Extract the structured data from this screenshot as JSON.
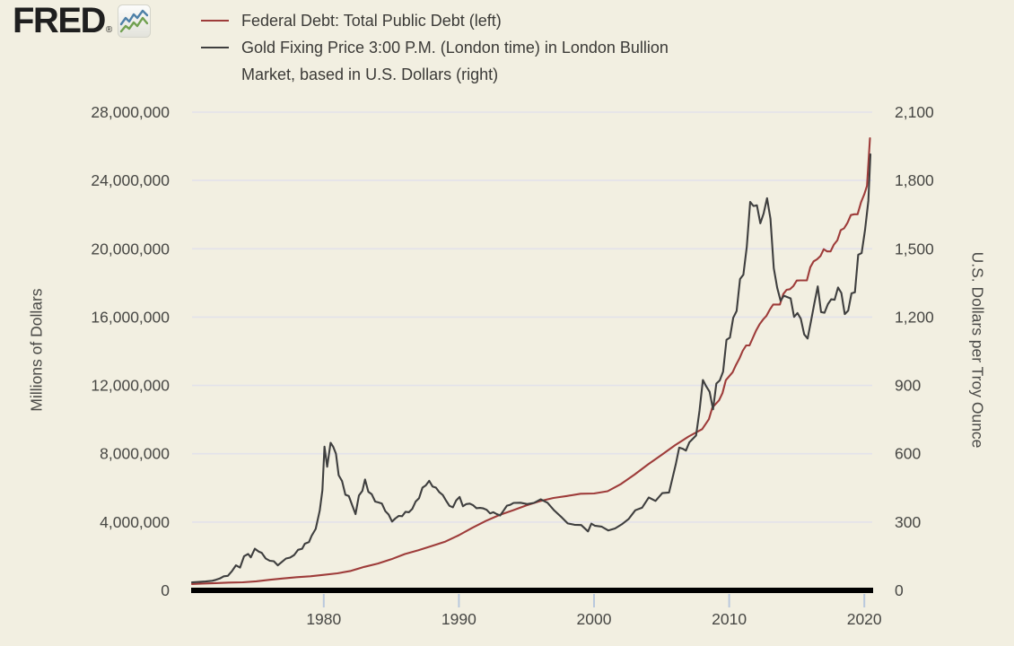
{
  "header": {
    "logo_text": "FRED",
    "logo_reg": "®"
  },
  "legend": {
    "items": [
      {
        "series": "federal-debt",
        "label": "Federal Debt: Total Public Debt (left)",
        "lines": [
          "Federal Debt: Total Public Debt (left)"
        ]
      },
      {
        "series": "gold-price",
        "label": "Gold Fixing Price 3:00 P.M. (London time) in London Bullion Market, based in U.S. Dollars (right)",
        "lines": [
          "Gold Fixing Price 3:00 P.M. (London time) in London Bullion",
          "Market, based in U.S. Dollars (right)"
        ]
      }
    ]
  },
  "colors": {
    "background": "#f2efe1",
    "debt_line": "#9e3c3a",
    "gold_line": "#3f3f3f",
    "grid": "#e3e2ea",
    "axis_tick": "#b9c8dd",
    "axis_text": "#474744",
    "axis_bar": "#000000",
    "fred_icon_blue": "#4f81a8",
    "fred_icon_green": "#71a150"
  },
  "chart_data": {
    "type": "line",
    "title": "",
    "legend_position": "top-left",
    "grid": "horizontal",
    "axes": {
      "x": {
        "ticks": [
          "1980",
          "1990",
          "2000",
          "2010",
          "2020"
        ],
        "tick_values": [
          1980,
          1990,
          2000,
          2010,
          2020
        ],
        "range": [
          1970.25,
          2020.45
        ]
      },
      "left": {
        "title": "Millions of Dollars",
        "ticks": [
          "28,000,000",
          "24,000,000",
          "20,000,000",
          "16,000,000",
          "12,000,000",
          "8,000,000",
          "4,000,000",
          "0"
        ],
        "tick_values": [
          28000000,
          24000000,
          20000000,
          16000000,
          12000000,
          8000000,
          4000000,
          0
        ],
        "range": [
          0,
          28000000
        ]
      },
      "right": {
        "title": "U.S. Dollars per Troy Ounce",
        "ticks": [
          "2,100",
          "1,800",
          "1,500",
          "1,200",
          "900",
          "600",
          "300",
          "0"
        ],
        "tick_values": [
          2100,
          1800,
          1500,
          1200,
          900,
          600,
          300,
          0
        ],
        "range": [
          0,
          2100
        ]
      }
    },
    "series": [
      {
        "name": "Federal Debt: Total Public Debt (left)",
        "axis": "left",
        "color": "#9e3c3a",
        "units": "Millions of Dollars",
        "points": [
          [
            1970.25,
            372000
          ],
          [
            1971,
            398000
          ],
          [
            1972,
            427000
          ],
          [
            1973,
            458000
          ],
          [
            1974,
            475000
          ],
          [
            1975,
            533000
          ],
          [
            1976,
            620000
          ],
          [
            1977,
            699000
          ],
          [
            1978,
            772000
          ],
          [
            1979,
            827000
          ],
          [
            1980,
            908000
          ],
          [
            1981,
            998000
          ],
          [
            1982,
            1142000
          ],
          [
            1983,
            1377000
          ],
          [
            1984,
            1572000
          ],
          [
            1985,
            1823000
          ],
          [
            1986,
            2125000
          ],
          [
            1987,
            2350000
          ],
          [
            1988,
            2602000
          ],
          [
            1989,
            2857000
          ],
          [
            1990,
            3233000
          ],
          [
            1991,
            3665000
          ],
          [
            1992,
            4065000
          ],
          [
            1993,
            4411000
          ],
          [
            1994,
            4693000
          ],
          [
            1995,
            4974000
          ],
          [
            1996,
            5225000
          ],
          [
            1997,
            5413000
          ],
          [
            1998,
            5526000
          ],
          [
            1999,
            5656000
          ],
          [
            2000,
            5674000
          ],
          [
            2001,
            5807000
          ],
          [
            2002,
            6228000
          ],
          [
            2003,
            6783000
          ],
          [
            2004,
            7379000
          ],
          [
            2005,
            7933000
          ],
          [
            2006,
            8507000
          ],
          [
            2007,
            9008000
          ],
          [
            2008,
            9438000
          ],
          [
            2008.5,
            10025000
          ],
          [
            2008.75,
            10700000
          ],
          [
            2009.25,
            11127000
          ],
          [
            2009.5,
            11545000
          ],
          [
            2009.75,
            12311000
          ],
          [
            2010.25,
            12773000
          ],
          [
            2010.5,
            13202000
          ],
          [
            2010.75,
            13562000
          ],
          [
            2011,
            14025000
          ],
          [
            2011.25,
            14344000
          ],
          [
            2011.5,
            14343000
          ],
          [
            2011.75,
            14790000
          ],
          [
            2012,
            15223000
          ],
          [
            2012.25,
            15583000
          ],
          [
            2012.5,
            15856000
          ],
          [
            2012.75,
            16066000
          ],
          [
            2013,
            16433000
          ],
          [
            2013.25,
            16738000
          ],
          [
            2013.5,
            16738000
          ],
          [
            2013.75,
            16738000
          ],
          [
            2014,
            17352000
          ],
          [
            2014.25,
            17601000
          ],
          [
            2014.5,
            17633000
          ],
          [
            2014.75,
            17824000
          ],
          [
            2015,
            18141000
          ],
          [
            2015.25,
            18152000
          ],
          [
            2015.5,
            18152000
          ],
          [
            2015.75,
            18151000
          ],
          [
            2016,
            18923000
          ],
          [
            2016.25,
            19265000
          ],
          [
            2016.5,
            19382000
          ],
          [
            2016.75,
            19573000
          ],
          [
            2017,
            19977000
          ],
          [
            2017.25,
            19846000
          ],
          [
            2017.5,
            19845000
          ],
          [
            2017.75,
            20245000
          ],
          [
            2018,
            20493000
          ],
          [
            2018.25,
            21090000
          ],
          [
            2018.5,
            21195000
          ],
          [
            2018.75,
            21516000
          ],
          [
            2019,
            21974000
          ],
          [
            2019.25,
            22023000
          ],
          [
            2019.5,
            22023000
          ],
          [
            2019.75,
            22719000
          ],
          [
            2020,
            23201000
          ],
          [
            2020.2,
            23687000
          ],
          [
            2020.42,
            26477000
          ]
        ]
      },
      {
        "name": "Gold Fixing Price 3:00 P.M. (London time) in London Bullion Market, based in U.S. Dollars (right)",
        "axis": "right",
        "color": "#3f3f3f",
        "units": "U.S. Dollars per Troy Ounce",
        "points": [
          [
            1970.25,
            35
          ],
          [
            1970.75,
            37
          ],
          [
            1971.25,
            39
          ],
          [
            1971.75,
            42
          ],
          [
            1972.0,
            46
          ],
          [
            1972.3,
            52
          ],
          [
            1972.6,
            62
          ],
          [
            1972.9,
            64
          ],
          [
            1973.2,
            84
          ],
          [
            1973.5,
            110
          ],
          [
            1973.8,
            100
          ],
          [
            1974.1,
            150
          ],
          [
            1974.4,
            160
          ],
          [
            1974.6,
            145
          ],
          [
            1974.9,
            183
          ],
          [
            1975.2,
            170
          ],
          [
            1975.4,
            165
          ],
          [
            1975.7,
            140
          ],
          [
            1976.0,
            130
          ],
          [
            1976.3,
            128
          ],
          [
            1976.6,
            110
          ],
          [
            1976.9,
            125
          ],
          [
            1977.2,
            140
          ],
          [
            1977.5,
            144
          ],
          [
            1977.8,
            155
          ],
          [
            1978.1,
            178
          ],
          [
            1978.4,
            183
          ],
          [
            1978.6,
            205
          ],
          [
            1978.9,
            212
          ],
          [
            1979.1,
            240
          ],
          [
            1979.4,
            270
          ],
          [
            1979.7,
            350
          ],
          [
            1979.9,
            440
          ],
          [
            1980.05,
            631
          ],
          [
            1980.25,
            543
          ],
          [
            1980.5,
            648
          ],
          [
            1980.7,
            630
          ],
          [
            1980.9,
            600
          ],
          [
            1981.1,
            506
          ],
          [
            1981.35,
            480
          ],
          [
            1981.6,
            420
          ],
          [
            1981.85,
            414
          ],
          [
            1982.1,
            374
          ],
          [
            1982.35,
            335
          ],
          [
            1982.6,
            417
          ],
          [
            1982.85,
            437
          ],
          [
            1983.05,
            487
          ],
          [
            1983.3,
            433
          ],
          [
            1983.55,
            422
          ],
          [
            1983.8,
            390
          ],
          [
            1984.05,
            386
          ],
          [
            1984.3,
            381
          ],
          [
            1984.55,
            348
          ],
          [
            1984.8,
            333
          ],
          [
            1985.05,
            302
          ],
          [
            1985.3,
            316
          ],
          [
            1985.55,
            327
          ],
          [
            1985.8,
            326
          ],
          [
            1986.05,
            345
          ],
          [
            1986.3,
            343
          ],
          [
            1986.55,
            358
          ],
          [
            1986.8,
            390
          ],
          [
            1987.05,
            405
          ],
          [
            1987.3,
            451
          ],
          [
            1987.55,
            461
          ],
          [
            1987.8,
            481
          ],
          [
            1988.05,
            456
          ],
          [
            1988.3,
            451
          ],
          [
            1988.55,
            431
          ],
          [
            1988.8,
            419
          ],
          [
            1989.05,
            394
          ],
          [
            1989.3,
            371
          ],
          [
            1989.55,
            365
          ],
          [
            1989.8,
            395
          ],
          [
            1990.05,
            410
          ],
          [
            1990.3,
            369
          ],
          [
            1990.55,
            379
          ],
          [
            1990.8,
            381
          ],
          [
            1991.05,
            374
          ],
          [
            1991.3,
            361
          ],
          [
            1991.55,
            362
          ],
          [
            1991.8,
            360
          ],
          [
            1992.05,
            354
          ],
          [
            1992.3,
            338
          ],
          [
            1992.55,
            343
          ],
          [
            1992.8,
            335
          ],
          [
            1993.05,
            329
          ],
          [
            1993.3,
            350
          ],
          [
            1993.55,
            372
          ],
          [
            1993.8,
            376
          ],
          [
            1994.05,
            384
          ],
          [
            1994.55,
            385
          ],
          [
            1995.05,
            379
          ],
          [
            1995.55,
            384
          ],
          [
            1996.05,
            400
          ],
          [
            1996.55,
            385
          ],
          [
            1997.05,
            351
          ],
          [
            1997.55,
            324
          ],
          [
            1998.05,
            294
          ],
          [
            1998.55,
            288
          ],
          [
            1999.05,
            287
          ],
          [
            1999.55,
            259
          ],
          [
            1999.8,
            293
          ],
          [
            2000.05,
            284
          ],
          [
            2000.55,
            280
          ],
          [
            2001.05,
            263
          ],
          [
            2001.55,
            272
          ],
          [
            2002.05,
            290
          ],
          [
            2002.55,
            313
          ],
          [
            2003.05,
            352
          ],
          [
            2003.55,
            363
          ],
          [
            2004.05,
            408
          ],
          [
            2004.55,
            393
          ],
          [
            2005.05,
            427
          ],
          [
            2005.55,
            430
          ],
          [
            2006.05,
            554
          ],
          [
            2006.3,
            627
          ],
          [
            2006.55,
            622
          ],
          [
            2006.8,
            614
          ],
          [
            2007.05,
            650
          ],
          [
            2007.55,
            680
          ],
          [
            2007.8,
            788
          ],
          [
            2008.05,
            924
          ],
          [
            2008.3,
            896
          ],
          [
            2008.55,
            872
          ],
          [
            2008.8,
            795
          ],
          [
            2009.05,
            908
          ],
          [
            2009.3,
            922
          ],
          [
            2009.55,
            960
          ],
          [
            2009.8,
            1100
          ],
          [
            2010.05,
            1110
          ],
          [
            2010.3,
            1197
          ],
          [
            2010.55,
            1227
          ],
          [
            2010.8,
            1367
          ],
          [
            2011.05,
            1386
          ],
          [
            2011.3,
            1508
          ],
          [
            2011.55,
            1706
          ],
          [
            2011.8,
            1688
          ],
          [
            2012.05,
            1691
          ],
          [
            2012.3,
            1612
          ],
          [
            2012.55,
            1655
          ],
          [
            2012.8,
            1722
          ],
          [
            2013.05,
            1632
          ],
          [
            2013.3,
            1415
          ],
          [
            2013.55,
            1329
          ],
          [
            2013.8,
            1272
          ],
          [
            2014.05,
            1294
          ],
          [
            2014.3,
            1288
          ],
          [
            2014.55,
            1282
          ],
          [
            2014.8,
            1201
          ],
          [
            2015.05,
            1218
          ],
          [
            2015.3,
            1193
          ],
          [
            2015.55,
            1124
          ],
          [
            2015.8,
            1106
          ],
          [
            2016.05,
            1181
          ],
          [
            2016.3,
            1260
          ],
          [
            2016.55,
            1335
          ],
          [
            2016.8,
            1222
          ],
          [
            2017.05,
            1219
          ],
          [
            2017.3,
            1257
          ],
          [
            2017.55,
            1278
          ],
          [
            2017.8,
            1276
          ],
          [
            2018.05,
            1330
          ],
          [
            2018.3,
            1306
          ],
          [
            2018.55,
            1213
          ],
          [
            2018.8,
            1228
          ],
          [
            2019.05,
            1304
          ],
          [
            2019.3,
            1309
          ],
          [
            2019.55,
            1474
          ],
          [
            2019.8,
            1481
          ],
          [
            2020.05,
            1583
          ],
          [
            2020.3,
            1711
          ],
          [
            2020.45,
            1915
          ]
        ]
      }
    ]
  }
}
